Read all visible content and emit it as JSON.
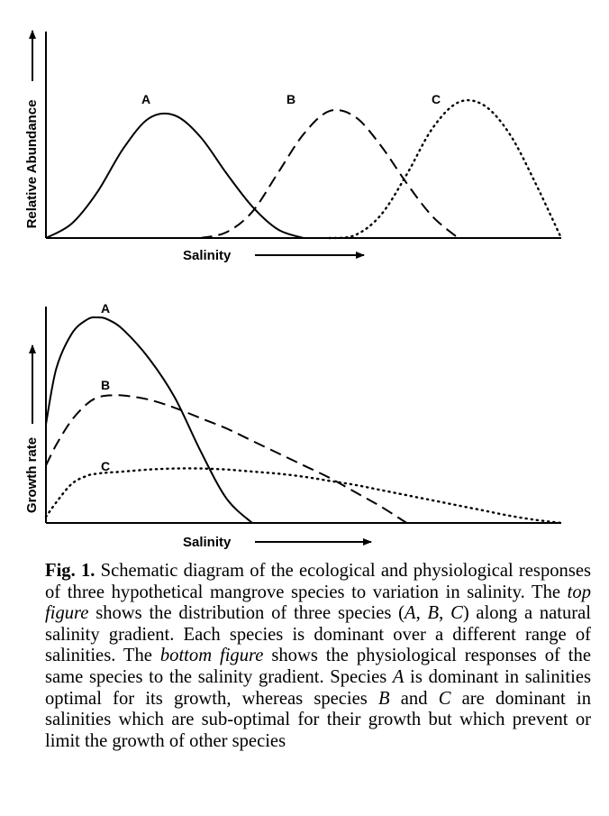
{
  "chart_data": [
    {
      "type": "line",
      "xlabel": "Salinity",
      "ylabel": "Relative Abundance",
      "xlim": [
        0,
        100
      ],
      "ylim": [
        0,
        100
      ],
      "x": [
        0,
        5,
        10,
        15,
        20,
        25,
        30,
        35,
        40,
        45,
        50,
        55,
        60,
        65,
        70,
        75,
        80,
        85,
        90,
        95,
        100
      ],
      "series": [
        {
          "name": "A",
          "style": "solid",
          "values": [
            0,
            10,
            32,
            62,
            83,
            85,
            70,
            45,
            22,
            6,
            0,
            0,
            0,
            0,
            0,
            0,
            0,
            0,
            0,
            0,
            0
          ]
        },
        {
          "name": "B",
          "style": "dashed",
          "values": [
            0,
            0,
            0,
            0,
            0,
            0,
            0,
            4,
            18,
            45,
            72,
            88,
            84,
            64,
            38,
            15,
            0,
            0,
            0,
            0,
            0
          ]
        },
        {
          "name": "C",
          "style": "dotted",
          "values": [
            0,
            0,
            0,
            0,
            0,
            0,
            0,
            0,
            0,
            0,
            0,
            0,
            2,
            16,
            44,
            76,
            94,
            92,
            72,
            38,
            0
          ]
        }
      ]
    },
    {
      "type": "line",
      "xlabel": "Salinity",
      "ylabel": "Growth rate",
      "xlim": [
        0,
        100
      ],
      "ylim": [
        0,
        100
      ],
      "x": [
        0,
        2,
        5,
        8,
        10,
        12,
        15,
        20,
        25,
        30,
        35,
        40,
        45,
        50,
        55,
        60,
        65,
        70,
        75,
        80,
        85,
        90,
        95,
        100
      ],
      "series": [
        {
          "name": "A",
          "style": "solid",
          "values": [
            48,
            75,
            92,
            99,
            100,
            99,
            94,
            80,
            61,
            35,
            12,
            0,
            null,
            null,
            null,
            null,
            null,
            null,
            null,
            null,
            null,
            null,
            null,
            null
          ]
        },
        {
          "name": "B",
          "style": "dashed",
          "values": [
            28,
            38,
            50,
            58,
            61,
            62,
            62,
            60,
            56,
            51,
            46,
            40,
            34,
            28,
            22,
            15,
            8,
            0,
            null,
            null,
            null,
            null,
            null,
            null
          ]
        },
        {
          "name": "C",
          "style": "dotted",
          "values": [
            3,
            10,
            19,
            23,
            24,
            24.5,
            25,
            26,
            26.5,
            26.5,
            26,
            25,
            24,
            22.5,
            20.5,
            18.5,
            16,
            13.5,
            11,
            8.5,
            6,
            3.5,
            1.5,
            0
          ]
        }
      ]
    }
  ],
  "caption": {
    "figure_label": "Fig. 1.",
    "segments": [
      {
        "text": " Schematic diagram of the ecological and physiological responses of three hypothetical mangrove species to variation in salinity. The ",
        "style": "normal"
      },
      {
        "text": "top figure",
        "style": "italic"
      },
      {
        "text": " shows the distribution of three species (",
        "style": "normal"
      },
      {
        "text": "A",
        "style": "italic"
      },
      {
        "text": ", ",
        "style": "normal"
      },
      {
        "text": "B",
        "style": "italic"
      },
      {
        "text": ", ",
        "style": "normal"
      },
      {
        "text": "C",
        "style": "italic"
      },
      {
        "text": ") along a natural salinity gradient. Each species is dominant over a different range of salinities. The ",
        "style": "normal"
      },
      {
        "text": "bottom figure",
        "style": "italic"
      },
      {
        "text": " shows the physiological responses of the same species to the salinity gradient. Species ",
        "style": "normal"
      },
      {
        "text": "A",
        "style": "italic"
      },
      {
        "text": " is dominant in salinities optimal for its growth, whereas species ",
        "style": "normal"
      },
      {
        "text": "B",
        "style": "italic"
      },
      {
        "text": " and ",
        "style": "normal"
      },
      {
        "text": "C",
        "style": "italic"
      },
      {
        "text": " are dominant in salinities which are sub-optimal for their growth but which prevent or limit the growth of other species",
        "style": "normal"
      }
    ]
  }
}
